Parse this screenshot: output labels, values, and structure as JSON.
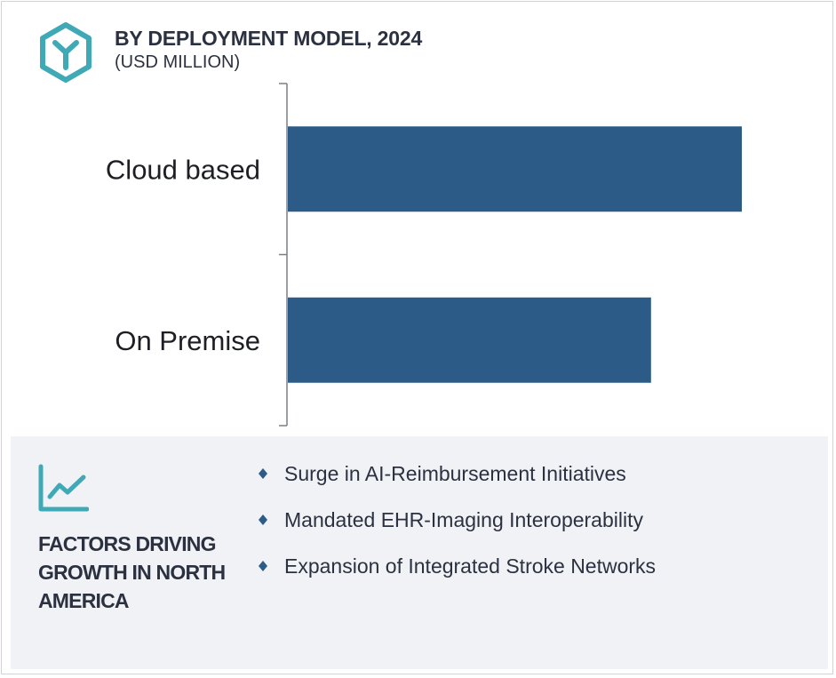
{
  "header": {
    "title": "BY DEPLOYMENT MODEL, 2024",
    "subtitle": "(USD MILLION)",
    "icon": "hexagon-y-logo-icon"
  },
  "colors": {
    "bar": "#2c5b87",
    "accent": "#3fa9b5",
    "heading": "#2b3140",
    "panel_bg": "#f0f2f5"
  },
  "chart_data": {
    "type": "bar",
    "orientation": "horizontal",
    "categories": [
      "Cloud based",
      "On Premise"
    ],
    "values": [
      100,
      80
    ],
    "xlim": [
      0,
      100
    ],
    "title": "BY DEPLOYMENT MODEL, 2024",
    "subtitle": "(USD MILLION)",
    "xlabel": "",
    "ylabel": "",
    "grid": false,
    "legend": "none"
  },
  "factors": {
    "heading": "FACTORS DRIVING GROWTH IN NORTH AMERICA",
    "icon": "line-trend-icon",
    "items": [
      "Surge in AI-Reimbursement  Initiatives",
      "Mandated EHR-Imaging  Interoperability",
      "Expansion  of  Integrated  Stroke  Networks"
    ]
  }
}
